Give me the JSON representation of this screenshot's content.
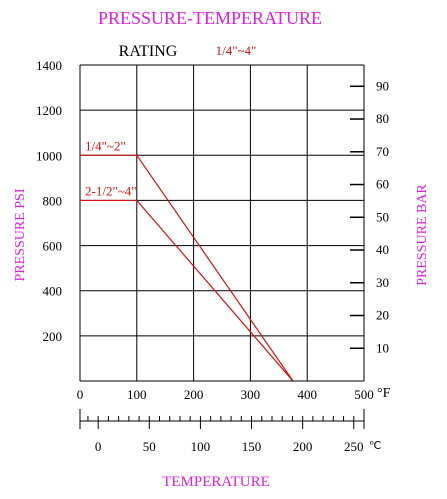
{
  "chart_data": {
    "type": "line",
    "title": "PRESSURE-TEMPERATURE",
    "subtitle": "RATING",
    "subtitle_range": "1/4\"~4\"",
    "ylabel": "PRESSURE PSI",
    "ylabel_right": "PRESSURE BAR",
    "xlabel": "TEMPERATURE",
    "x_unit": "°F",
    "x2_unit": "℃",
    "xlim": [
      0,
      500
    ],
    "ylim": [
      0,
      1400
    ],
    "y2lim": [
      0,
      96.5
    ],
    "x_ticks": [
      0,
      100,
      200,
      300,
      400,
      500
    ],
    "y_ticks": [
      200,
      400,
      600,
      800,
      1000,
      1200,
      1400
    ],
    "y2_ticks": [
      10,
      20,
      30,
      40,
      50,
      60,
      70,
      80,
      90
    ],
    "x2_ticks": [
      0,
      50,
      100,
      150,
      200,
      250
    ],
    "grid": true,
    "series": [
      {
        "name": "1/4\"~2\"",
        "x": [
          0,
          100,
          375
        ],
        "y": [
          1000,
          1000,
          0
        ]
      },
      {
        "name": "2-1/2\"~4\"",
        "x": [
          0,
          100,
          375
        ],
        "y": [
          800,
          800,
          0
        ]
      }
    ],
    "colors": {
      "title": "#e020e0",
      "series": "#d21414",
      "axis": "#000000",
      "labels": "#000000"
    }
  }
}
